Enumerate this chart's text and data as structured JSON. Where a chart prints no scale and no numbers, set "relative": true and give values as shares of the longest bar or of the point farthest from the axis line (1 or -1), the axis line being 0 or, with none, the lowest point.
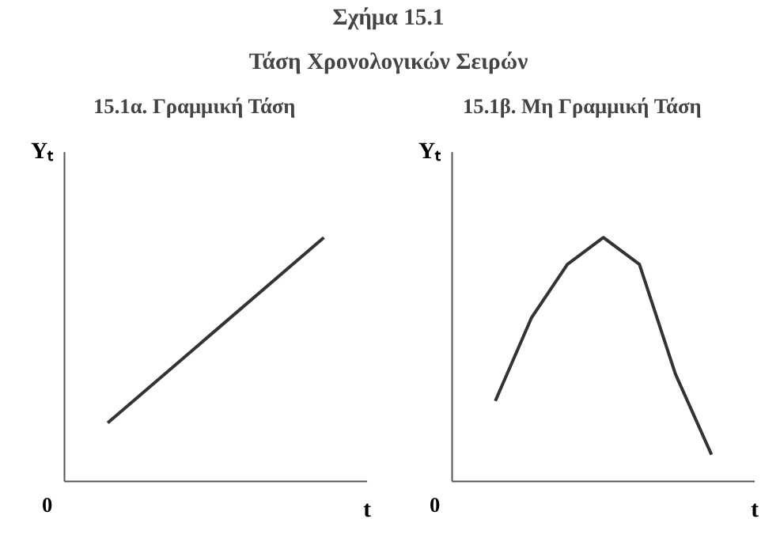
{
  "chart_data": [
    {
      "type": "other",
      "title": "Σχήμα 15.1",
      "subtitle": "Τάση Χρονολογικών Σειρών"
    },
    {
      "type": "line",
      "title": "15.1α. Γραμμική Τάση",
      "xlabel": "t",
      "ylabel": "Yₜ",
      "annotations": [
        "0"
      ],
      "relative": true,
      "categories": [
        null,
        null
      ],
      "series": [
        {
          "color": "#333333",
          "values": [
            0.24,
            1
          ]
        }
      ],
      "line_style": "solid",
      "grid": false
    },
    {
      "type": "line",
      "title": "15.1β. Μη Γραμμική Τάση",
      "xlabel": "t",
      "ylabel": "Yₜ",
      "annotations": [
        "0"
      ],
      "relative": true,
      "categories": [
        null,
        null,
        null,
        null,
        null,
        null,
        null
      ],
      "series": [
        {
          "color": "#333333",
          "values": [
            0.33,
            0.67,
            0.89,
            1,
            0.89,
            0.44,
            0.11
          ]
        }
      ],
      "line_style": "solid",
      "grid": false
    }
  ]
}
